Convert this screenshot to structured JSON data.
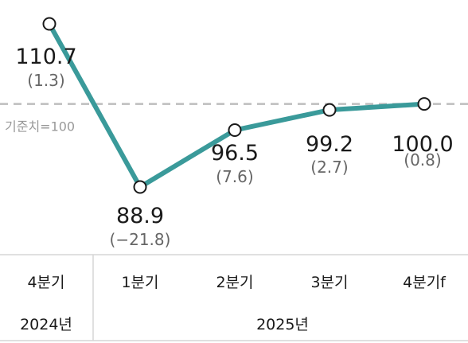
{
  "chart_data": {
    "type": "line",
    "categories": [
      "4분기",
      "1분기",
      "2분기",
      "3분기",
      "4분기f"
    ],
    "year_groups": [
      {
        "label": "2024년",
        "categories": [
          "4분기"
        ]
      },
      {
        "label": "2025년",
        "categories": [
          "1분기",
          "2분기",
          "3분기",
          "4분기f"
        ]
      }
    ],
    "series": [
      {
        "values": [
          110.7,
          88.9,
          96.5,
          99.2,
          100.0
        ],
        "value_labels": [
          "110.7",
          "88.9",
          "96.5",
          "99.2",
          "100.0"
        ],
        "change_labels": [
          "(1.3)",
          "(−21.8)",
          "(7.6)",
          "(2.7)",
          "(0.8)"
        ]
      }
    ],
    "reference_line": {
      "value": 100,
      "label": "기준치=100",
      "style": "dashed"
    },
    "ylim": [
      86,
      112
    ],
    "line_color": "#3a9a9a",
    "grid": false,
    "legend": "none"
  }
}
